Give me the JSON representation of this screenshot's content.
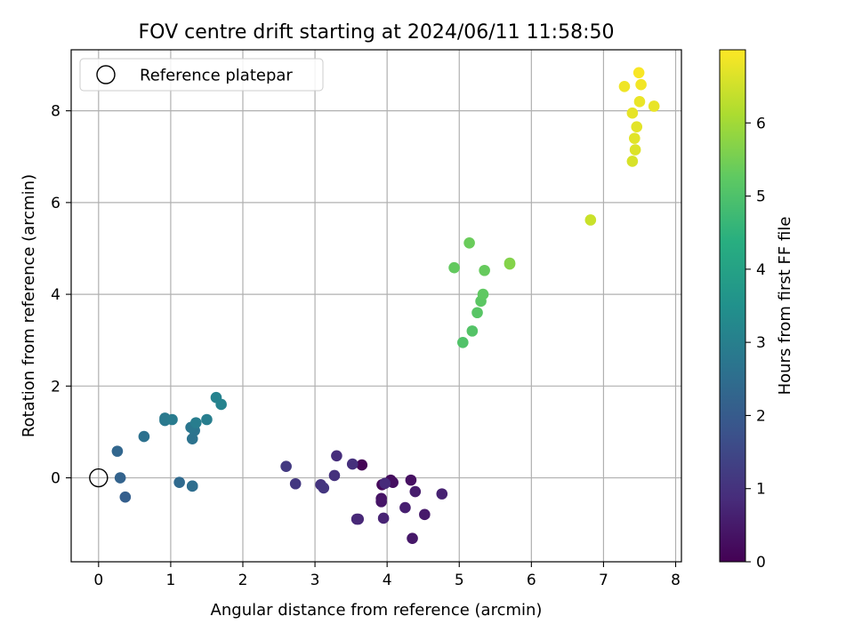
{
  "chart_data": {
    "type": "scatter",
    "title": "FOV centre drift starting at 2024/06/11 11:58:50",
    "xlabel": "Angular distance from reference (arcmin)",
    "ylabel": "Rotation from reference (arcmin)",
    "xlim": [
      -0.38,
      8.08
    ],
    "ylim": [
      -1.83,
      9.33
    ],
    "xticks": [
      0,
      1,
      2,
      3,
      4,
      5,
      6,
      7,
      8
    ],
    "yticks": [
      0,
      2,
      4,
      6,
      8
    ],
    "grid": true,
    "legend": {
      "placement": "top-left",
      "entries": [
        "Reference platepar"
      ]
    },
    "colorbar": {
      "label": "Hours from first FF file",
      "colormap": "viridis",
      "range": [
        0,
        7
      ],
      "ticks": [
        0,
        1,
        2,
        3,
        4,
        5,
        6
      ]
    },
    "reference_point": {
      "x": 0,
      "y": 0,
      "marker": "open-circle"
    },
    "points": [
      {
        "x": 3.65,
        "y": 0.28,
        "h": 0.05
      },
      {
        "x": 3.93,
        "y": -0.15,
        "h": 0.15
      },
      {
        "x": 4.05,
        "y": -0.05,
        "h": 0.2
      },
      {
        "x": 4.08,
        "y": -0.1,
        "h": 0.25
      },
      {
        "x": 4.33,
        "y": -0.05,
        "h": 0.3
      },
      {
        "x": 3.92,
        "y": -0.45,
        "h": 0.35
      },
      {
        "x": 3.92,
        "y": -0.52,
        "h": 0.4
      },
      {
        "x": 4.35,
        "y": -1.32,
        "h": 0.45
      },
      {
        "x": 4.52,
        "y": -0.8,
        "h": 0.5
      },
      {
        "x": 4.39,
        "y": -0.3,
        "h": 0.55
      },
      {
        "x": 4.25,
        "y": -0.65,
        "h": 0.6
      },
      {
        "x": 4.76,
        "y": -0.35,
        "h": 0.65
      },
      {
        "x": 3.95,
        "y": -0.88,
        "h": 0.7
      },
      {
        "x": 3.6,
        "y": -0.9,
        "h": 0.75
      },
      {
        "x": 3.58,
        "y": -0.9,
        "h": 0.8
      },
      {
        "x": 3.97,
        "y": -0.12,
        "h": 0.85
      },
      {
        "x": 3.3,
        "y": 0.48,
        "h": 0.9
      },
      {
        "x": 3.52,
        "y": 0.3,
        "h": 0.95
      },
      {
        "x": 3.27,
        "y": 0.05,
        "h": 1.0
      },
      {
        "x": 3.08,
        "y": -0.15,
        "h": 1.05
      },
      {
        "x": 3.12,
        "y": -0.22,
        "h": 1.1
      },
      {
        "x": 2.73,
        "y": -0.13,
        "h": 1.15
      },
      {
        "x": 2.6,
        "y": 0.25,
        "h": 1.2
      },
      {
        "x": 0.37,
        "y": -0.42,
        "h": 2.1
      },
      {
        "x": 0.3,
        "y": 0.0,
        "h": 2.2
      },
      {
        "x": 0.26,
        "y": 0.58,
        "h": 2.3
      },
      {
        "x": 1.12,
        "y": -0.1,
        "h": 2.4
      },
      {
        "x": 1.3,
        "y": -0.18,
        "h": 2.45
      },
      {
        "x": 1.3,
        "y": -0.18,
        "h": 2.5
      },
      {
        "x": 0.63,
        "y": 0.9,
        "h": 2.6
      },
      {
        "x": 1.3,
        "y": 0.85,
        "h": 2.65
      },
      {
        "x": 1.33,
        "y": 1.03,
        "h": 2.7
      },
      {
        "x": 1.28,
        "y": 1.1,
        "h": 2.75
      },
      {
        "x": 0.92,
        "y": 1.25,
        "h": 2.8
      },
      {
        "x": 0.92,
        "y": 1.3,
        "h": 2.85
      },
      {
        "x": 1.02,
        "y": 1.27,
        "h": 2.9
      },
      {
        "x": 1.35,
        "y": 1.2,
        "h": 2.95
      },
      {
        "x": 1.5,
        "y": 1.27,
        "h": 3.0
      },
      {
        "x": 1.63,
        "y": 1.75,
        "h": 3.1
      },
      {
        "x": 1.7,
        "y": 1.6,
        "h": 3.15
      },
      {
        "x": 5.05,
        "y": 2.95,
        "h": 5.05
      },
      {
        "x": 5.18,
        "y": 3.2,
        "h": 5.1
      },
      {
        "x": 5.25,
        "y": 3.6,
        "h": 5.15
      },
      {
        "x": 5.3,
        "y": 3.85,
        "h": 5.2
      },
      {
        "x": 5.33,
        "y": 4.0,
        "h": 5.25
      },
      {
        "x": 4.93,
        "y": 4.58,
        "h": 5.3
      },
      {
        "x": 5.35,
        "y": 4.52,
        "h": 5.35
      },
      {
        "x": 5.14,
        "y": 5.12,
        "h": 5.4
      },
      {
        "x": 5.7,
        "y": 4.68,
        "h": 5.65
      },
      {
        "x": 5.7,
        "y": 4.66,
        "h": 5.7
      },
      {
        "x": 6.82,
        "y": 5.62,
        "h": 6.45
      },
      {
        "x": 7.4,
        "y": 6.9,
        "h": 6.6
      },
      {
        "x": 7.44,
        "y": 7.15,
        "h": 6.65
      },
      {
        "x": 7.43,
        "y": 7.4,
        "h": 6.7
      },
      {
        "x": 7.46,
        "y": 7.65,
        "h": 6.72
      },
      {
        "x": 7.4,
        "y": 7.95,
        "h": 6.75
      },
      {
        "x": 7.7,
        "y": 8.1,
        "h": 6.78
      },
      {
        "x": 7.5,
        "y": 8.2,
        "h": 6.8
      },
      {
        "x": 7.29,
        "y": 8.53,
        "h": 6.85
      },
      {
        "x": 7.52,
        "y": 8.57,
        "h": 6.88
      },
      {
        "x": 7.49,
        "y": 8.83,
        "h": 6.95
      }
    ]
  }
}
